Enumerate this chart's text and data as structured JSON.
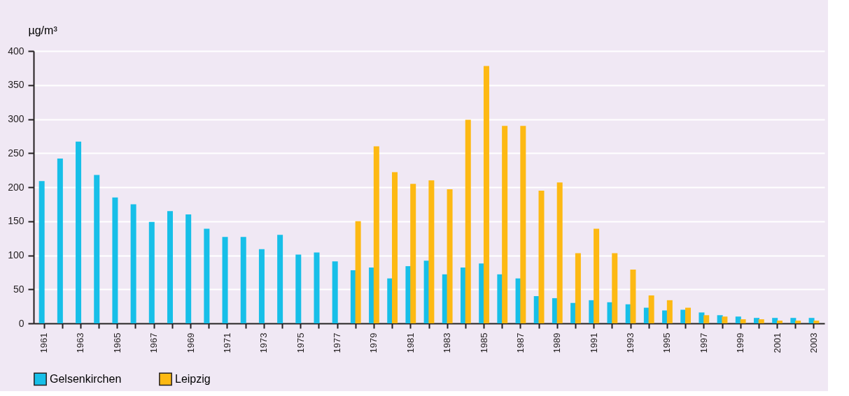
{
  "chart_data": {
    "type": "bar",
    "ylabel": "µg/m³",
    "categories": [
      "1961",
      null,
      "1963",
      null,
      "1965",
      null,
      "1967",
      null,
      "1969",
      null,
      "1971",
      null,
      "1973",
      null,
      "1975",
      null,
      "1977",
      null,
      "1979",
      null,
      "1981",
      null,
      "1983",
      null,
      "1985",
      null,
      "1987",
      null,
      "1989",
      null,
      "1991",
      null,
      "1993",
      null,
      "1995",
      null,
      "1997",
      null,
      "1999",
      null,
      "2001",
      null,
      "2003"
    ],
    "series": [
      {
        "name": "Gelsenkirchen",
        "color": "#17bfe8",
        "values": [
          209,
          242,
          267,
          218,
          185,
          175,
          149,
          165,
          160,
          139,
          127,
          127,
          109,
          130,
          101,
          104,
          91,
          78,
          82,
          66,
          84,
          92,
          72,
          82,
          88,
          72,
          66,
          40,
          37,
          30,
          34,
          31,
          28,
          23,
          19,
          20,
          16,
          12,
          10,
          8,
          8,
          8,
          8
        ]
      },
      {
        "name": "Leipzig",
        "color": "#fdb913",
        "values": [
          null,
          null,
          null,
          null,
          null,
          null,
          null,
          null,
          null,
          null,
          null,
          null,
          null,
          null,
          null,
          null,
          null,
          150,
          260,
          222,
          205,
          210,
          197,
          299,
          378,
          290,
          290,
          195,
          207,
          103,
          139,
          103,
          79,
          41,
          34,
          23,
          12,
          10,
          6,
          6,
          4,
          4,
          4
        ]
      }
    ],
    "ylim": [
      0,
      400
    ],
    "yticks": [
      0,
      50,
      100,
      150,
      200,
      250,
      300,
      350,
      400
    ],
    "grid": "y",
    "legend": "bottom left"
  }
}
